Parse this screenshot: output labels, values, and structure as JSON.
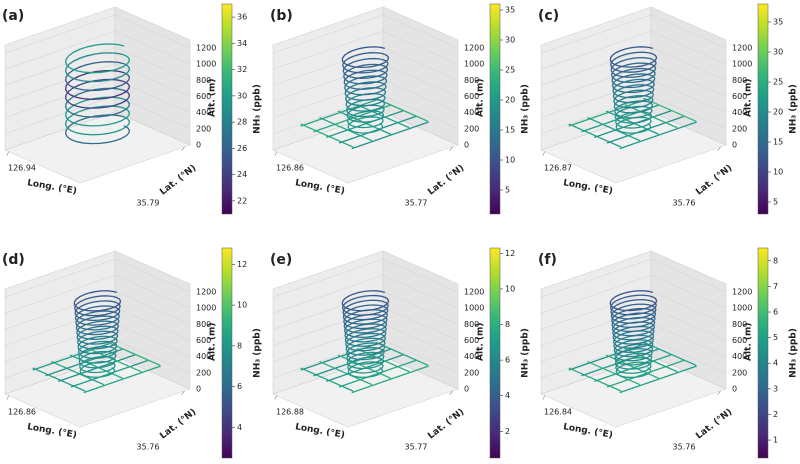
{
  "chart_data": [
    {
      "type": "line3d",
      "label": "(a)",
      "xlabel": "Long. (°E)",
      "ylabel": "Lat. (°N)",
      "zlabel": "Alt. (m)",
      "xticks": [
        126.94
      ],
      "yticks": [
        35.79
      ],
      "zlim": [
        0,
        1300
      ],
      "zticks": [
        0,
        200,
        400,
        600,
        800,
        1000,
        1200
      ],
      "colormap": "viridis",
      "colorbar": {
        "label": "NH₃ (ppb)",
        "lim": [
          21,
          37
        ],
        "ticks": [
          22,
          24,
          26,
          28,
          30,
          32,
          34,
          36
        ]
      }
    },
    {
      "type": "line3d",
      "label": "(b)",
      "xlabel": "Long. (°E)",
      "ylabel": "Lat. (°N)",
      "zlabel": "Alt. (m)",
      "xticks": [
        126.86
      ],
      "yticks": [
        35.77
      ],
      "zlim": [
        0,
        1300
      ],
      "zticks": [
        0,
        200,
        400,
        600,
        800,
        1000,
        1200
      ],
      "colormap": "viridis",
      "colorbar": {
        "label": "NH₃ (ppb)",
        "lim": [
          1,
          36
        ],
        "ticks": [
          5,
          10,
          15,
          20,
          25,
          30,
          35
        ]
      }
    },
    {
      "type": "line3d",
      "label": "(c)",
      "xlabel": "Long. (°E)",
      "ylabel": "Lat. (°N)",
      "zlabel": "Alt. (m)",
      "xticks": [
        126.87
      ],
      "yticks": [
        35.76
      ],
      "zlim": [
        0,
        1300
      ],
      "zticks": [
        0,
        200,
        400,
        600,
        800,
        1000,
        1200
      ],
      "colormap": "viridis",
      "colorbar": {
        "label": "NH₃ (ppb)",
        "lim": [
          3,
          38
        ],
        "ticks": [
          5,
          10,
          15,
          20,
          25,
          30,
          35
        ]
      }
    },
    {
      "type": "line3d",
      "label": "(d)",
      "xlabel": "Long. (°E)",
      "ylabel": "Lat. (°N)",
      "zlabel": "Alt. (m)",
      "xticks": [
        126.86
      ],
      "yticks": [
        35.76
      ],
      "zlim": [
        0,
        1300
      ],
      "zticks": [
        0,
        200,
        400,
        600,
        800,
        1000,
        1200
      ],
      "colormap": "viridis",
      "colorbar": {
        "label": "NH₃ (ppb)",
        "lim": [
          2.5,
          12.8
        ],
        "ticks": [
          4,
          6,
          8,
          10,
          12
        ]
      }
    },
    {
      "type": "line3d",
      "label": "(e)",
      "xlabel": "Long. (°E)",
      "ylabel": "Lat. (°N)",
      "zlabel": "Alt. (m)",
      "xticks": [
        126.88
      ],
      "yticks": [
        35.77
      ],
      "zlim": [
        0,
        1300
      ],
      "zticks": [
        0,
        200,
        400,
        600,
        800,
        1000,
        1200
      ],
      "colormap": "viridis",
      "colorbar": {
        "label": "NH₃ (ppb)",
        "lim": [
          0.5,
          12.3
        ],
        "ticks": [
          2,
          4,
          6,
          8,
          10,
          12
        ]
      }
    },
    {
      "type": "line3d",
      "label": "(f)",
      "xlabel": "Long. (°E)",
      "ylabel": "Lat. (°N)",
      "zlabel": "Alt. (m)",
      "xticks": [
        126.84
      ],
      "yticks": [
        35.76
      ],
      "zlim": [
        0,
        1300
      ],
      "zticks": [
        0,
        200,
        400,
        600,
        800,
        1000,
        1200
      ],
      "colormap": "viridis",
      "colorbar": {
        "label": "NH₃ (ppb)",
        "lim": [
          0.3,
          8.5
        ],
        "ticks": [
          1,
          2,
          3,
          4,
          5,
          6,
          7,
          8
        ]
      }
    }
  ]
}
